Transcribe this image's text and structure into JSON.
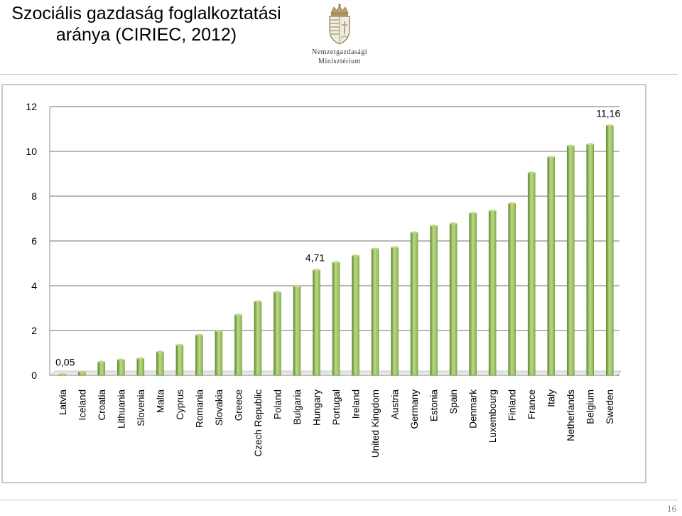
{
  "slide": {
    "title_line1": "Szociális gazdaság foglalkoztatási",
    "title_line2": "aránya (CIRIEC, 2012)",
    "logo_line1": "Nemzetgazdasági",
    "logo_line2": "Minisztérium",
    "page_number": "16"
  },
  "colors": {
    "bar_fill": "#8db64a",
    "bar_light": "#bcd98a",
    "bar_dark": "#5f8a2b",
    "grid": "#8c8c8c",
    "rule": "#c9c7a8"
  },
  "chart_data": {
    "type": "bar",
    "title": "",
    "xlabel": "",
    "ylabel": "",
    "ylim": [
      0,
      12
    ],
    "yticks": [
      "0",
      "2",
      "4",
      "6",
      "8",
      "10",
      "12"
    ],
    "grid": true,
    "categories": [
      "Latvia",
      "Iceland",
      "Croatia",
      "Lithuania",
      "Slovenia",
      "Malta",
      "Cyprus",
      "Romania",
      "Slovakia",
      "Greece",
      "Czech Republic",
      "Poland",
      "Bulgaria",
      "Hungary",
      "Portugal",
      "Ireland",
      "United Kingdom",
      "Austria",
      "Germany",
      "Estonia",
      "Spain",
      "Denmark",
      "Luxembourg",
      "Finland",
      "France",
      "Italy",
      "Netherlands",
      "Belgium",
      "Sweden"
    ],
    "values": [
      0.05,
      0.15,
      0.6,
      0.7,
      0.75,
      1.05,
      1.35,
      1.8,
      1.98,
      2.7,
      3.3,
      3.72,
      3.98,
      4.71,
      5.05,
      5.35,
      5.65,
      5.72,
      6.38,
      6.68,
      6.78,
      7.25,
      7.35,
      7.68,
      9.05,
      9.75,
      10.25,
      10.32,
      11.16
    ],
    "data_labels": [
      {
        "category": "Latvia",
        "text": "0,05"
      },
      {
        "category": "Hungary",
        "text": "4,71"
      },
      {
        "category": "Sweden",
        "text": "11,16"
      }
    ]
  }
}
